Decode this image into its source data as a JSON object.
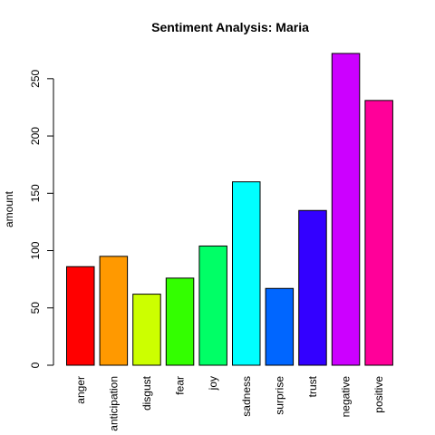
{
  "chart_data": {
    "type": "bar",
    "title": "Sentiment Analysis: Maria",
    "xlabel": "",
    "ylabel": "amount",
    "ylim": [
      0,
      272
    ],
    "yticks": [
      0,
      50,
      100,
      150,
      200,
      250
    ],
    "grid": false,
    "categories": [
      "anger",
      "anticipation",
      "disgust",
      "fear",
      "joy",
      "sadness",
      "surprise",
      "trust",
      "negative",
      "positive"
    ],
    "values": [
      86,
      95,
      62,
      76,
      104,
      160,
      67,
      135,
      272,
      231
    ],
    "colors": [
      "#FF0000",
      "#FF9900",
      "#CCFF00",
      "#33FF00",
      "#00FF66",
      "#00FFFF",
      "#0066FF",
      "#3300FF",
      "#CC00FF",
      "#FF0099"
    ]
  }
}
